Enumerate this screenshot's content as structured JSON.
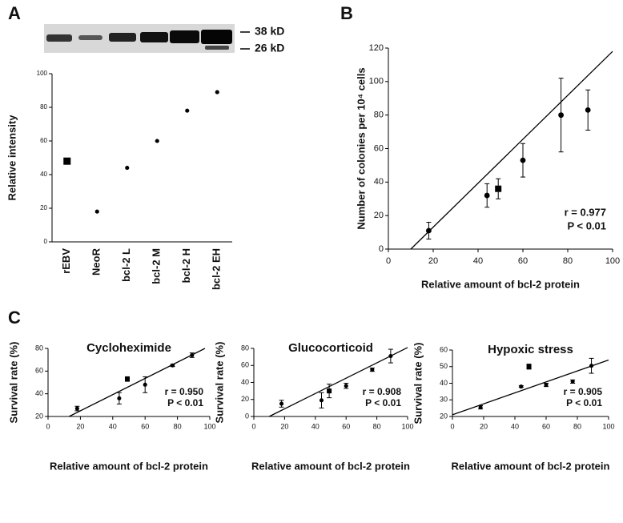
{
  "chart_data": [
    {
      "type": "dot",
      "panel": "A",
      "annotations": [
        "38 kD",
        "26 kD"
      ],
      "ylabel": "Relative intensity",
      "categories": [
        "rEBV",
        "NeoR",
        "bcl-2 L",
        "bcl-2 M",
        "bcl-2 H",
        "bcl-2 EH"
      ],
      "values": [
        48,
        18,
        44,
        60,
        78,
        89
      ],
      "markers": [
        "square",
        "circle",
        "circle",
        "circle",
        "circle",
        "circle"
      ],
      "color": "#000000",
      "ylim": [
        0,
        100
      ],
      "yticks": [
        0,
        20,
        40,
        60,
        80,
        100
      ]
    },
    {
      "type": "scatter",
      "panel": "B",
      "xlabel": "Relative amount of bcl-2 protein",
      "ylabel": "Number of colonies per 10⁴ cells",
      "x": [
        18,
        44,
        49,
        60,
        77,
        89
      ],
      "series": [
        {
          "values": [
            11,
            32,
            36,
            53,
            80,
            83
          ],
          "errors": [
            5,
            7,
            6,
            10,
            22,
            12
          ],
          "markers": [
            "circle",
            "circle",
            "square",
            "circle",
            "circle",
            "circle"
          ],
          "color": "#000000"
        }
      ],
      "fit": {
        "x": [
          10,
          100
        ],
        "y": [
          0,
          118
        ]
      },
      "stat_r": "r = 0.977",
      "stat_p": "P < 0.01",
      "xlim": [
        0,
        100
      ],
      "xticks": [
        0,
        20,
        40,
        60,
        80,
        100
      ],
      "ylim": [
        0,
        120
      ],
      "yticks": [
        0,
        20,
        40,
        60,
        80,
        100,
        120
      ]
    },
    {
      "type": "scatter",
      "panel": "C",
      "title": "Cycloheximide",
      "xlabel": "Relative amount of bcl-2 protein",
      "ylabel": "Survival rate (%)",
      "x": [
        18,
        44,
        49,
        60,
        77,
        89
      ],
      "series": [
        {
          "values": [
            27,
            36,
            53,
            48,
            65,
            74
          ],
          "errors": [
            2,
            5,
            2,
            7,
            1,
            2
          ],
          "markers": [
            "circle",
            "circle",
            "square",
            "circle",
            "circle",
            "circle"
          ],
          "color": "#000000"
        }
      ],
      "fit": {
        "x": [
          13,
          97
        ],
        "y": [
          20,
          80
        ]
      },
      "stat_r": "r = 0.950",
      "stat_p": "P < 0.01",
      "xlim": [
        0,
        100
      ],
      "xticks": [
        0,
        20,
        40,
        60,
        80,
        100
      ],
      "ylim": [
        20,
        80
      ],
      "yticks": [
        20,
        40,
        60,
        80
      ]
    },
    {
      "type": "scatter",
      "title": "Glucocorticoid",
      "xlabel": "Relative amount of bcl-2 protein",
      "ylabel": "Survival rate (%)",
      "x": [
        18,
        44,
        49,
        60,
        77,
        89
      ],
      "series": [
        {
          "values": [
            15,
            19,
            30,
            36,
            55,
            71
          ],
          "errors": [
            4,
            9,
            8,
            3,
            2,
            8
          ],
          "markers": [
            "circle",
            "circle",
            "square",
            "circle",
            "circle",
            "circle"
          ],
          "color": "#000000"
        }
      ],
      "fit": {
        "x": [
          10,
          100
        ],
        "y": [
          0,
          81
        ]
      },
      "stat_r": "r = 0.908",
      "stat_p": "P < 0.01",
      "xlim": [
        0,
        100
      ],
      "xticks": [
        0,
        20,
        40,
        60,
        80,
        100
      ],
      "ylim": [
        0,
        80
      ],
      "yticks": [
        0,
        20,
        40,
        60,
        80
      ]
    },
    {
      "type": "scatter",
      "title": "Hypoxic stress",
      "xlabel": "Relative amount of bcl-2 protein",
      "ylabel": "Survival rate (%)",
      "x": [
        18,
        44,
        49,
        60,
        77,
        89
      ],
      "series": [
        {
          "values": [
            25.5,
            38,
            50,
            39,
            41,
            50.5
          ],
          "errors": [
            1,
            0.5,
            1.5,
            1,
            1,
            4.5
          ],
          "markers": [
            "circle",
            "circle",
            "square",
            "circle",
            "circle",
            "circle"
          ],
          "color": "#000000"
        }
      ],
      "fit": {
        "x": [
          0,
          100
        ],
        "y": [
          21,
          54
        ]
      },
      "stat_r": "r = 0.905",
      "stat_p": "P < 0.01",
      "xlim": [
        0,
        100
      ],
      "xticks": [
        0,
        20,
        40,
        60,
        80,
        100
      ],
      "ylim": [
        20,
        60
      ],
      "yticks": [
        20,
        30,
        40,
        50,
        60
      ]
    }
  ]
}
